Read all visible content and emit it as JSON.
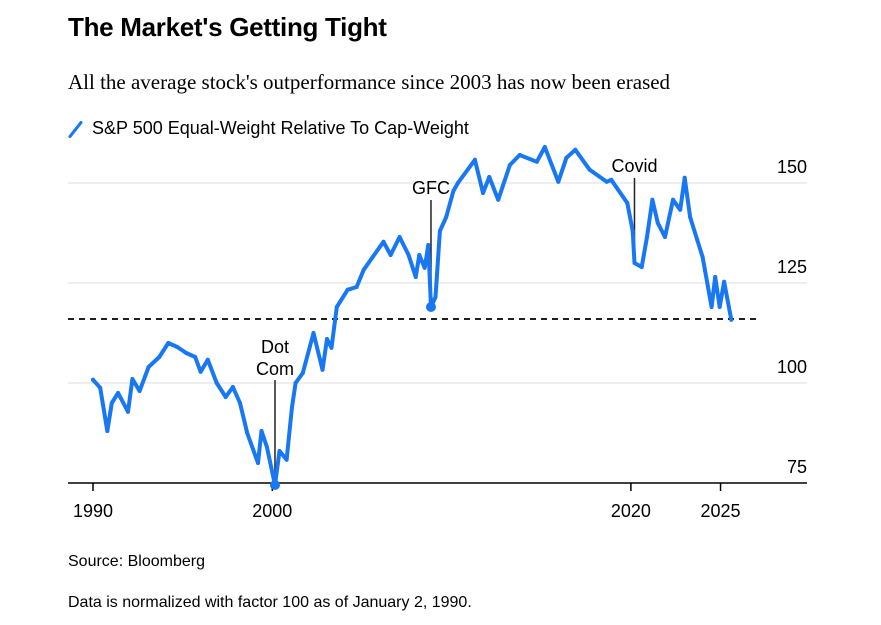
{
  "title": "The Market's Getting Tight",
  "subtitle": "All the average stock's outperformance since 2003 has now been erased",
  "source": "Source: Bloomberg",
  "note": "Data is normalized with factor 100 as of January 2, 1990.",
  "colors": {
    "line": "#1877f2",
    "grid": "#e8e8e8",
    "axis": "#000000"
  },
  "chart_data": {
    "type": "line",
    "title": "The Market's Getting Tight",
    "xlabel": "",
    "ylabel": "",
    "xlim": [
      1990,
      2026.5
    ],
    "ylim": [
      75,
      160
    ],
    "grid": true,
    "legend_position": "top-left",
    "x_ticks": [
      1990,
      2000,
      2020,
      2025
    ],
    "x_tick_labels": [
      "1990",
      "2000",
      "2020",
      "2025"
    ],
    "y_ticks": [
      75,
      100,
      125,
      150
    ],
    "y_tick_labels": [
      "75",
      "100",
      "125",
      "150"
    ],
    "reference_line": {
      "value": 116,
      "style": "dashed"
    },
    "series": [
      {
        "name": "S&P 500 Equal-Weight Relative To Cap-Weight",
        "x": [
          1990.0,
          1990.4,
          1990.8,
          1991.05,
          1991.4,
          1991.95,
          1992.2,
          1992.6,
          1993.1,
          1993.7,
          1994.2,
          1994.7,
          1995.2,
          1995.7,
          1996.0,
          1996.4,
          1996.9,
          1997.4,
          1997.8,
          1998.2,
          1998.6,
          1999.2,
          1999.4,
          1999.7,
          2000.15,
          2000.4,
          2000.8,
          2001.1,
          2001.3,
          2001.7,
          2002.3,
          2002.8,
          2003.05,
          2003.3,
          2003.6,
          2004.2,
          2004.7,
          2005.1,
          2005.6,
          2006.2,
          2006.6,
          2007.1,
          2007.6,
          2008.0,
          2008.2,
          2008.5,
          2008.7,
          2008.85,
          2009.1,
          2009.35,
          2009.7,
          2010.1,
          2010.35,
          2011.3,
          2011.75,
          2012.1,
          2012.6,
          2013.25,
          2013.8,
          2014.75,
          2015.2,
          2015.95,
          2016.4,
          2016.9,
          2017.7,
          2018.65,
          2018.9,
          2019.8,
          2020.1,
          2020.2,
          2020.6,
          2020.9,
          2021.2,
          2021.5,
          2021.9,
          2022.35,
          2022.75,
          2023.0,
          2023.3,
          2023.7,
          2024.0,
          2024.5,
          2024.7,
          2024.95,
          2025.2,
          2025.6
        ],
        "y": [
          100.8,
          98.8,
          88,
          95,
          97.5,
          92.8,
          101,
          98,
          104,
          106.5,
          110,
          109,
          107.5,
          106.5,
          102.8,
          105.8,
          100,
          96.5,
          99,
          95,
          87.5,
          80,
          88,
          84,
          74.5,
          83,
          80.8,
          94,
          100,
          102.5,
          112.5,
          103.3,
          111,
          108.8,
          119,
          123.3,
          124,
          128.3,
          131.5,
          135.3,
          132,
          136.5,
          132,
          126.5,
          132,
          128.8,
          134.5,
          119,
          121.5,
          138,
          141.5,
          148,
          150,
          155.8,
          147.5,
          151.5,
          145.8,
          154.5,
          157,
          155.3,
          159,
          150.3,
          156.3,
          158.3,
          153.3,
          150.3,
          150.8,
          145,
          138,
          130,
          129,
          136.5,
          145.8,
          140,
          136.5,
          145.8,
          143.3,
          151.3,
          141.5,
          135.8,
          131.5,
          119,
          126.5,
          119,
          125.3,
          115.8
        ]
      }
    ],
    "annotations": [
      {
        "label_lines": [
          "Dot",
          "Com"
        ],
        "x": 2000.15,
        "y": 74.5,
        "marker": true
      },
      {
        "label_lines": [
          "GFC"
        ],
        "x": 2008.85,
        "y": 119,
        "marker": true
      },
      {
        "label_lines": [
          "Covid"
        ],
        "x": 2020.2,
        "y": 130,
        "marker": false
      }
    ]
  }
}
